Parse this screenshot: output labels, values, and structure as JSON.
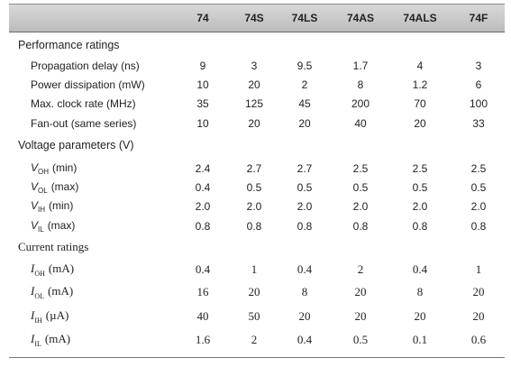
{
  "table": {
    "columns": [
      "74",
      "74S",
      "74LS",
      "74AS",
      "74ALS",
      "74F"
    ],
    "sections": [
      {
        "title": "Performance ratings",
        "rows": [
          {
            "label": "Propagation delay (ns)",
            "values": [
              "9",
              "3",
              "9.5",
              "1.7",
              "4",
              "3"
            ]
          },
          {
            "label": "Power dissipation (mW)",
            "values": [
              "10",
              "20",
              "2",
              "8",
              "1.2",
              "6"
            ]
          },
          {
            "label": "Max. clock rate (MHz)",
            "values": [
              "35",
              "125",
              "45",
              "200",
              "70",
              "100"
            ]
          },
          {
            "label": "Fan-out (same series)",
            "values": [
              "10",
              "20",
              "20",
              "40",
              "20",
              "33"
            ]
          }
        ]
      },
      {
        "title": "Voltage parameters (V)",
        "rows": [
          {
            "label": {
              "symbol": "V",
              "sub": "OH",
              "suffix": "(min)"
            },
            "values": [
              "2.4",
              "2.7",
              "2.7",
              "2.5",
              "2.5",
              "2.5"
            ]
          },
          {
            "label": {
              "symbol": "V",
              "sub": "OL",
              "suffix": "(max)"
            },
            "values": [
              "0.4",
              "0.5",
              "0.5",
              "0.5",
              "0.5",
              "0.5"
            ]
          },
          {
            "label": {
              "symbol": "V",
              "sub": "IH",
              "suffix": "(min)"
            },
            "values": [
              "2.0",
              "2.0",
              "2.0",
              "2.0",
              "2.0",
              "2.0"
            ]
          },
          {
            "label": {
              "symbol": "V",
              "sub": "IL",
              "suffix": "(max)"
            },
            "values": [
              "0.8",
              "0.8",
              "0.8",
              "0.8",
              "0.8",
              "0.8"
            ]
          }
        ]
      },
      {
        "title": "Current ratings",
        "rows": [
          {
            "label": {
              "symbol": "I",
              "sub": "OH",
              "suffix": "(mA)"
            },
            "values": [
              "0.4",
              "1",
              "0.4",
              "2",
              "0.4",
              "1"
            ]
          },
          {
            "label": {
              "symbol": "I",
              "sub": "OL",
              "suffix": "(mA)"
            },
            "values": [
              "16",
              "20",
              "8",
              "20",
              "8",
              "20"
            ]
          },
          {
            "label": {
              "symbol": "I",
              "sub": "IH",
              "suffix": "(µA)"
            },
            "values": [
              "40",
              "50",
              "20",
              "20",
              "20",
              "20"
            ]
          },
          {
            "label": {
              "symbol": "I",
              "sub": "IL",
              "suffix": "(mA)"
            },
            "values": [
              "1.6",
              "2",
              "0.4",
              "0.5",
              "0.1",
              "0.6"
            ]
          }
        ]
      }
    ]
  }
}
